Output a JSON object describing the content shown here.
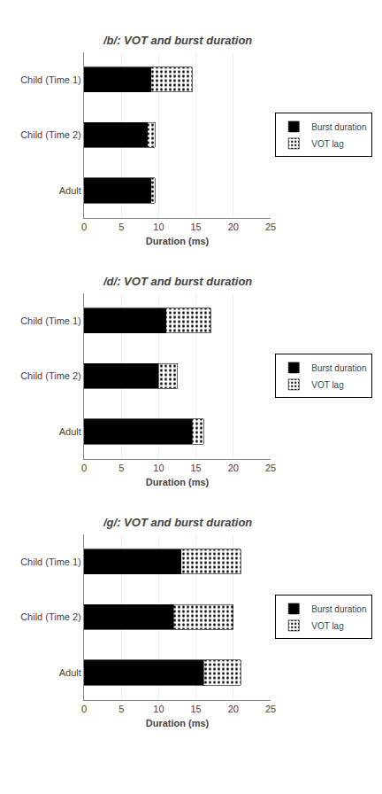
{
  "chart_data": [
    {
      "type": "bar",
      "orientation": "horizontal",
      "stacked": true,
      "title": "/b/: VOT and burst duration",
      "categories": [
        "Child (Time 1)",
        "Child (Time 2)",
        "Adult"
      ],
      "series": [
        {
          "name": "Burst duration",
          "color": "#000000",
          "values": [
            9.0,
            8.5,
            9.0
          ]
        },
        {
          "name": "VOT lag",
          "color": "#ffffff",
          "values": [
            5.5,
            1.0,
            0.5
          ]
        }
      ],
      "xlim": [
        0,
        25
      ],
      "xticks": [
        0,
        5,
        10,
        15,
        20,
        25
      ],
      "xlabel": "Duration (ms)",
      "grid": true,
      "legend": "right"
    },
    {
      "type": "bar",
      "orientation": "horizontal",
      "stacked": true,
      "title": "/d/: VOT and burst duration",
      "categories": [
        "Child (Time 1)",
        "Child (Time 2)",
        "Adult"
      ],
      "series": [
        {
          "name": "Burst duration",
          "color": "#000000",
          "values": [
            11.0,
            10.0,
            14.5
          ]
        },
        {
          "name": "VOT lag",
          "color": "#ffffff",
          "values": [
            6.0,
            2.5,
            1.5
          ]
        }
      ],
      "xlim": [
        0,
        25
      ],
      "xticks": [
        0,
        5,
        10,
        15,
        20,
        25
      ],
      "xlabel": "Duration (ms)",
      "grid": true,
      "legend": "right"
    },
    {
      "type": "bar",
      "orientation": "horizontal",
      "stacked": true,
      "title": "/g/: VOT and burst duration",
      "categories": [
        "Child (Time 1)",
        "Child (Time 2)",
        "Adult"
      ],
      "series": [
        {
          "name": "Burst duration",
          "color": "#000000",
          "values": [
            13.0,
            12.0,
            16.0
          ]
        },
        {
          "name": "VOT lag",
          "color": "#ffffff",
          "values": [
            8.0,
            8.0,
            5.0
          ]
        }
      ],
      "xlim": [
        0,
        25
      ],
      "xticks": [
        0,
        5,
        10,
        15,
        20,
        25
      ],
      "xlabel": "Duration (ms)",
      "grid": true,
      "legend": "right"
    }
  ]
}
